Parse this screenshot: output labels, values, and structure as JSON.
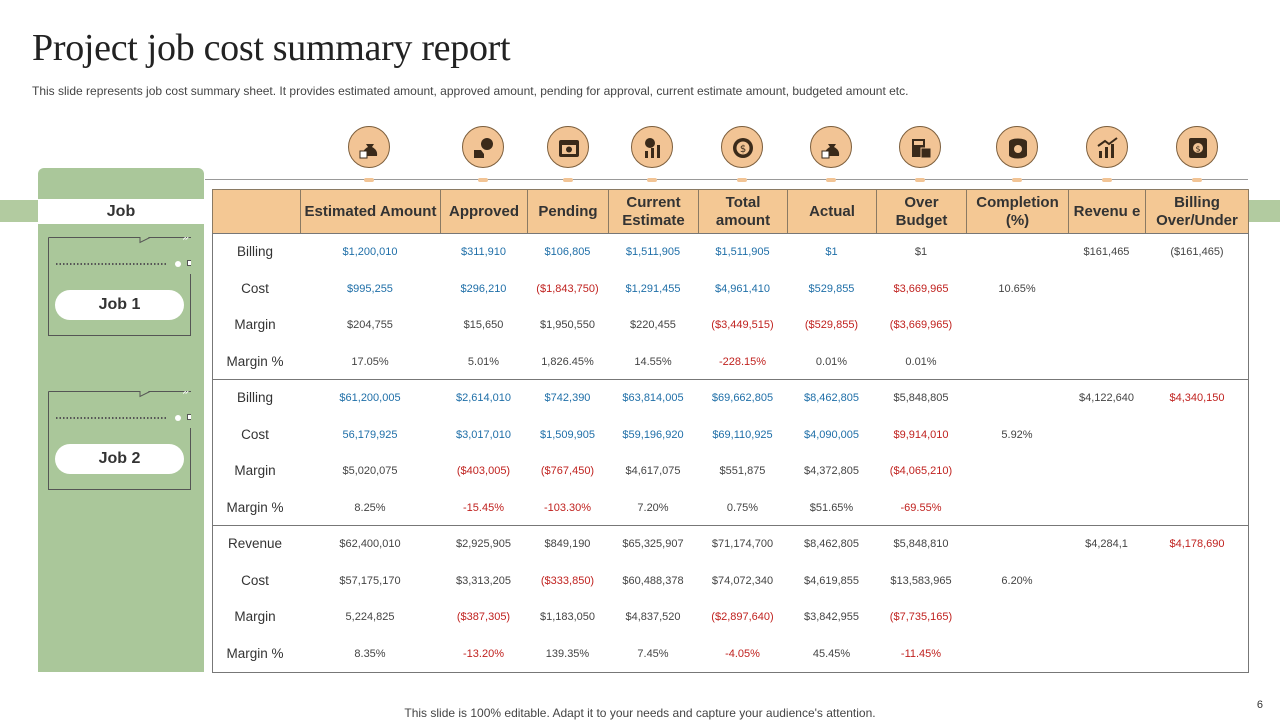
{
  "title": "Project job cost summary report",
  "subtitle": "This slide represents job cost summary sheet. It provides estimated amount, approved amount, pending for approval, current estimate amount, budgeted amount etc.",
  "job_header": "Job",
  "jobs": [
    "Job 1",
    "Job 2"
  ],
  "columns": [
    "Estimated Amount",
    "Approved",
    "Pending",
    "Current Estimate",
    "Total amount",
    "Actual",
    "Over Budget",
    "Completion (%)",
    "Revenu e",
    "Billing Over/Under"
  ],
  "icons": [
    "money-bag-icon",
    "approval-hand-icon",
    "calendar-icon",
    "estimate-chart-icon",
    "coin-dollar-icon",
    "money-bag-icon",
    "budget-calculator-icon",
    "coin-stack-icon",
    "revenue-growth-icon",
    "billing-invoice-icon"
  ],
  "colors": {
    "accent_orange": "#f4c894",
    "accent_green": "#aac79a",
    "negative": "#c0221f",
    "positive": "#1f6fa8"
  },
  "sections": [
    {
      "rows": [
        {
          "label": "Billing",
          "cells": [
            {
              "v": "$1,200,010",
              "c": "blue"
            },
            {
              "v": "$311,910",
              "c": "blue"
            },
            {
              "v": "$106,805",
              "c": "blue"
            },
            {
              "v": "$1,511,905",
              "c": "blue"
            },
            {
              "v": "$1,511,905",
              "c": "blue"
            },
            {
              "v": "$1",
              "c": "blue"
            },
            {
              "v": "$1",
              "c": ""
            },
            {
              "v": "",
              "c": ""
            },
            {
              "v": "$161,465",
              "c": ""
            },
            {
              "v": "($161,465)",
              "c": ""
            }
          ]
        },
        {
          "label": "Cost",
          "cells": [
            {
              "v": "$995,255",
              "c": "blue"
            },
            {
              "v": "$296,210",
              "c": "blue"
            },
            {
              "v": "($1,843,750)",
              "c": "red"
            },
            {
              "v": "$1,291,455",
              "c": "blue"
            },
            {
              "v": "$4,961,410",
              "c": "blue"
            },
            {
              "v": "$529,855",
              "c": "blue"
            },
            {
              "v": "$3,669,965",
              "c": "red"
            },
            {
              "v": "10.65%",
              "c": ""
            },
            {
              "v": "",
              "c": ""
            },
            {
              "v": "",
              "c": ""
            }
          ]
        },
        {
          "label": "Margin",
          "cells": [
            {
              "v": "$204,755",
              "c": ""
            },
            {
              "v": "$15,650",
              "c": ""
            },
            {
              "v": "$1,950,550",
              "c": ""
            },
            {
              "v": "$220,455",
              "c": ""
            },
            {
              "v": "($3,449,515)",
              "c": "red"
            },
            {
              "v": "($529,855)",
              "c": "red"
            },
            {
              "v": "($3,669,965)",
              "c": "red"
            },
            {
              "v": "",
              "c": ""
            },
            {
              "v": "",
              "c": ""
            },
            {
              "v": "",
              "c": ""
            }
          ]
        },
        {
          "label": "Margin  %",
          "cells": [
            {
              "v": "17.05%",
              "c": ""
            },
            {
              "v": "5.01%",
              "c": ""
            },
            {
              "v": "1,826.45%",
              "c": ""
            },
            {
              "v": "14.55%",
              "c": ""
            },
            {
              "v": "-228.15%",
              "c": "red"
            },
            {
              "v": "0.01%",
              "c": ""
            },
            {
              "v": "0.01%",
              "c": ""
            },
            {
              "v": "",
              "c": ""
            },
            {
              "v": "",
              "c": ""
            },
            {
              "v": "",
              "c": ""
            }
          ]
        }
      ]
    },
    {
      "rows": [
        {
          "label": "Billing",
          "cells": [
            {
              "v": "$61,200,005",
              "c": "blue"
            },
            {
              "v": "$2,614,010",
              "c": "blue"
            },
            {
              "v": "$742,390",
              "c": "blue"
            },
            {
              "v": "$63,814,005",
              "c": "blue"
            },
            {
              "v": "$69,662,805",
              "c": "blue"
            },
            {
              "v": "$8,462,805",
              "c": "blue"
            },
            {
              "v": "$5,848,805",
              "c": ""
            },
            {
              "v": "",
              "c": ""
            },
            {
              "v": "$4,122,640",
              "c": ""
            },
            {
              "v": "$4,340,150",
              "c": "red"
            }
          ]
        },
        {
          "label": "Cost",
          "cells": [
            {
              "v": "56,179,925",
              "c": "blue"
            },
            {
              "v": "$3,017,010",
              "c": "blue"
            },
            {
              "v": "$1,509,905",
              "c": "blue"
            },
            {
              "v": "$59,196,920",
              "c": "blue"
            },
            {
              "v": "$69,110,925",
              "c": "blue"
            },
            {
              "v": "$4,090,005",
              "c": "blue"
            },
            {
              "v": "$9,914,010",
              "c": "red"
            },
            {
              "v": "5.92%",
              "c": ""
            },
            {
              "v": "",
              "c": ""
            },
            {
              "v": "",
              "c": ""
            }
          ]
        },
        {
          "label": "Margin",
          "cells": [
            {
              "v": "$5,020,075",
              "c": ""
            },
            {
              "v": "($403,005)",
              "c": "red"
            },
            {
              "v": "($767,450)",
              "c": "red"
            },
            {
              "v": "$4,617,075",
              "c": ""
            },
            {
              "v": "$551,875",
              "c": ""
            },
            {
              "v": "$4,372,805",
              "c": ""
            },
            {
              "v": "($4,065,210)",
              "c": "red"
            },
            {
              "v": "",
              "c": ""
            },
            {
              "v": "",
              "c": ""
            },
            {
              "v": "",
              "c": ""
            }
          ]
        },
        {
          "label": "Margin  %",
          "cells": [
            {
              "v": "8.25%",
              "c": ""
            },
            {
              "v": "-15.45%",
              "c": "red"
            },
            {
              "v": "-103.30%",
              "c": "red"
            },
            {
              "v": "7.20%",
              "c": ""
            },
            {
              "v": "0.75%",
              "c": ""
            },
            {
              "v": "$51.65%",
              "c": ""
            },
            {
              "v": "-69.55%",
              "c": "red"
            },
            {
              "v": "",
              "c": ""
            },
            {
              "v": "",
              "c": ""
            },
            {
              "v": "",
              "c": ""
            }
          ]
        }
      ]
    },
    {
      "rows": [
        {
          "label": "Revenue",
          "cells": [
            {
              "v": "$62,400,010",
              "c": ""
            },
            {
              "v": "$2,925,905",
              "c": ""
            },
            {
              "v": "$849,190",
              "c": ""
            },
            {
              "v": "$65,325,907",
              "c": ""
            },
            {
              "v": "$71,174,700",
              "c": ""
            },
            {
              "v": "$8,462,805",
              "c": ""
            },
            {
              "v": "$5,848,810",
              "c": ""
            },
            {
              "v": "",
              "c": ""
            },
            {
              "v": "$4,284,1",
              "c": ""
            },
            {
              "v": "$4,178,690",
              "c": "red"
            }
          ]
        },
        {
          "label": "Cost",
          "cells": [
            {
              "v": "$57,175,170",
              "c": ""
            },
            {
              "v": "$3,313,205",
              "c": ""
            },
            {
              "v": "($333,850)",
              "c": "red"
            },
            {
              "v": "$60,488,378",
              "c": ""
            },
            {
              "v": "$74,072,340",
              "c": ""
            },
            {
              "v": "$4,619,855",
              "c": ""
            },
            {
              "v": "$13,583,965",
              "c": ""
            },
            {
              "v": "6.20%",
              "c": ""
            },
            {
              "v": "",
              "c": ""
            },
            {
              "v": "",
              "c": ""
            }
          ]
        },
        {
          "label": "Margin",
          "cells": [
            {
              "v": "5,224,825",
              "c": ""
            },
            {
              "v": "($387,305)",
              "c": "red"
            },
            {
              "v": "$1,183,050",
              "c": ""
            },
            {
              "v": "$4,837,520",
              "c": ""
            },
            {
              "v": "($2,897,640)",
              "c": "red"
            },
            {
              "v": "$3,842,955",
              "c": ""
            },
            {
              "v": "($7,735,165)",
              "c": "red"
            },
            {
              "v": "",
              "c": ""
            },
            {
              "v": "",
              "c": ""
            },
            {
              "v": "",
              "c": ""
            }
          ]
        },
        {
          "label": "Margin  %",
          "cells": [
            {
              "v": "8.35%",
              "c": ""
            },
            {
              "v": "-13.20%",
              "c": "red"
            },
            {
              "v": "139.35%",
              "c": ""
            },
            {
              "v": "7.45%",
              "c": ""
            },
            {
              "v": "-4.05%",
              "c": "red"
            },
            {
              "v": "45.45%",
              "c": ""
            },
            {
              "v": "-11.45%",
              "c": "red"
            },
            {
              "v": "",
              "c": ""
            },
            {
              "v": "",
              "c": ""
            },
            {
              "v": "",
              "c": ""
            }
          ]
        }
      ]
    }
  ],
  "footer": "This slide is 100% editable. Adapt it to your needs and capture your audience's attention.",
  "page_number": "6"
}
